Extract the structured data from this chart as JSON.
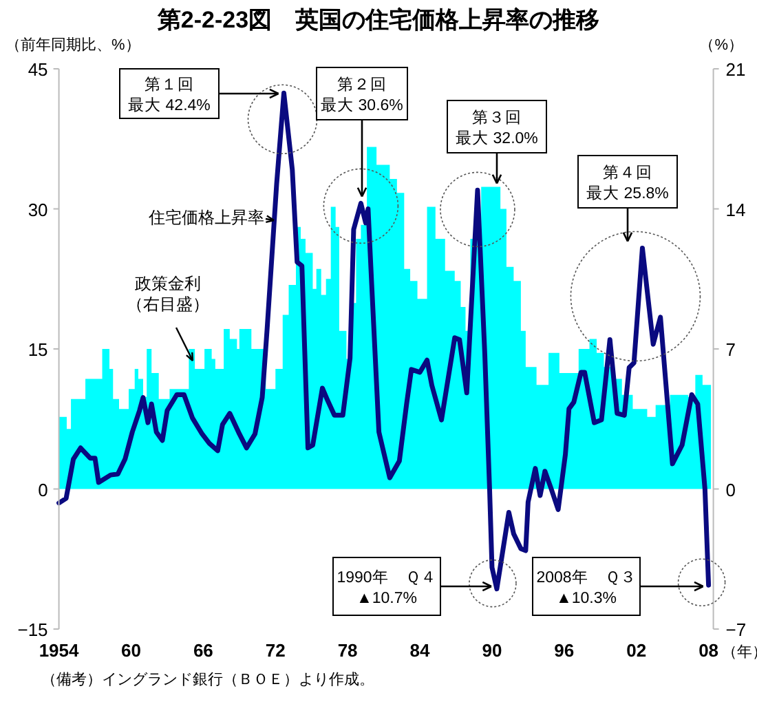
{
  "chart_data": {
    "type": "line",
    "title": "第2-2-23図　英国の住宅価格上昇率の推移",
    "ylabel": "（前年同期比、%）",
    "y2label": "（%）",
    "xlabel": "（年）",
    "xlim": [
      1954,
      2008.4
    ],
    "xticks": [
      1954,
      {
        "value": 1960,
        "label": "60"
      },
      {
        "value": 1966,
        "label": "66"
      },
      {
        "value": 1972,
        "label": "72"
      },
      {
        "value": 1978,
        "label": "78"
      },
      {
        "value": 1984,
        "label": "84"
      },
      {
        "value": 1990,
        "label": "90"
      },
      {
        "value": 1996,
        "label": "96"
      },
      {
        "value": 2002,
        "label": "02"
      },
      {
        "value": 2008,
        "label": "08"
      }
    ],
    "ylim": [
      -15,
      45
    ],
    "yticks": [
      -15,
      0,
      15,
      30,
      45
    ],
    "y2lim": [
      -7,
      21
    ],
    "y2ticks": [
      -7,
      0,
      7,
      14,
      21
    ],
    "grid": false,
    "legend": false,
    "series": [
      {
        "name": "政策金利（右目盛）",
        "type": "area",
        "axis": "y2",
        "color": "#00ffff",
        "x": [
          1954.0,
          1954.65,
          1954.65,
          1955.0,
          1955.0,
          1956.2,
          1956.2,
          1957.6,
          1957.6,
          1958.2,
          1958.2,
          1958.5,
          1958.5,
          1959.0,
          1959.0,
          1959.8,
          1959.8,
          1960.3,
          1960.3,
          1960.6,
          1960.6,
          1961.0,
          1961.0,
          1961.3,
          1961.3,
          1961.7,
          1961.7,
          1962.3,
          1962.3,
          1963.2,
          1963.2,
          1964.8,
          1964.8,
          1965.3,
          1965.3,
          1966.1,
          1966.1,
          1966.7,
          1966.7,
          1967.0,
          1967.0,
          1967.7,
          1967.7,
          1968.2,
          1968.2,
          1968.8,
          1968.8,
          1969.0,
          1969.0,
          1970.0,
          1970.0,
          1971.2,
          1971.2,
          1972.0,
          1972.0,
          1972.6,
          1972.6,
          1973.1,
          1973.1,
          1973.7,
          1973.7,
          1974.1,
          1974.1,
          1974.5,
          1974.5,
          1975.1,
          1975.1,
          1975.4,
          1975.4,
          1975.8,
          1975.8,
          1976.2,
          1976.2,
          1976.6,
          1976.6,
          1977.0,
          1977.0,
          1977.3,
          1977.3,
          1977.9,
          1977.9,
          1978.3,
          1978.3,
          1978.7,
          1978.7,
          1979.1,
          1979.1,
          1979.6,
          1979.6,
          1980.4,
          1980.4,
          1981.5,
          1981.5,
          1982.1,
          1982.1,
          1982.7,
          1982.7,
          1983.2,
          1983.2,
          1983.8,
          1983.8,
          1984.6,
          1984.6,
          1985.3,
          1985.3,
          1986.1,
          1986.1,
          1986.9,
          1986.9,
          1987.4,
          1987.4,
          1987.8,
          1987.8,
          1988.2,
          1988.2,
          1989.1,
          1989.1,
          1990.7,
          1990.7,
          1991.2,
          1991.2,
          1991.8,
          1991.8,
          1992.4,
          1992.4,
          1992.8,
          1992.8,
          1993.7,
          1993.7,
          1994.7,
          1994.7,
          1995.6,
          1995.6,
          1997.2,
          1997.2,
          1998.1,
          1998.1,
          1998.7,
          1998.7,
          1999.3,
          1999.3,
          2000.2,
          2000.2,
          2000.8,
          2000.8,
          2001.7,
          2001.7,
          2002.9,
          2002.9,
          2003.6,
          2003.6,
          2004.8,
          2004.8,
          2006.3,
          2006.3,
          2006.9,
          2006.9,
          2007.5,
          2007.5,
          2008.2
        ],
        "values": [
          3.6,
          3.6,
          3.0,
          3.0,
          4.5,
          4.5,
          5.5,
          5.5,
          7.0,
          7.0,
          6.0,
          6.0,
          4.5,
          4.5,
          4.0,
          4.0,
          5.0,
          5.0,
          6.0,
          6.0,
          5.5,
          5.5,
          4.6,
          4.6,
          7.0,
          7.0,
          5.8,
          5.8,
          4.5,
          4.5,
          5.0,
          5.0,
          7.0,
          7.0,
          6.0,
          6.0,
          7.0,
          7.0,
          6.5,
          6.5,
          6.0,
          6.0,
          8.0,
          8.0,
          7.5,
          7.5,
          7.0,
          7.0,
          8.0,
          8.0,
          7.0,
          7.0,
          5.0,
          5.0,
          6.0,
          6.0,
          8.7,
          8.7,
          10.2,
          10.2,
          13.1,
          13.1,
          12.5,
          12.5,
          11.8,
          11.8,
          10.0,
          10.0,
          11.0,
          11.0,
          9.7,
          9.7,
          10.5,
          10.5,
          14.1,
          14.1,
          13.1,
          13.1,
          7.9,
          7.9,
          6.5,
          6.5,
          9.3,
          9.3,
          12.5,
          12.5,
          13.2,
          13.2,
          17.1,
          17.1,
          16.2,
          16.2,
          15.5,
          15.5,
          14.8,
          14.8,
          11.0,
          11.0,
          10.4,
          10.4,
          9.5,
          9.5,
          14.1,
          14.1,
          12.5,
          12.5,
          10.9,
          10.9,
          10.4,
          10.4,
          9.1,
          9.1,
          7.9,
          7.9,
          12.5,
          12.5,
          15.1,
          15.1,
          14.0,
          14.0,
          11.1,
          11.1,
          10.4,
          10.4,
          7.9,
          7.9,
          6.1,
          6.1,
          5.2,
          5.2,
          6.8,
          6.8,
          5.8,
          5.8,
          7.0,
          7.0,
          7.5,
          7.5,
          6.8,
          6.8,
          6.1,
          6.1,
          5.5,
          5.5,
          4.7,
          4.7,
          4.0,
          4.0,
          3.6,
          3.6,
          4.2,
          4.2,
          4.7,
          4.7,
          4.6,
          4.6,
          5.7,
          5.7,
          5.2,
          5.2
        ]
      },
      {
        "name": "住宅価格上昇率",
        "color": "#0a0a80",
        "x": [
          1954.0,
          1954.6,
          1955.2,
          1955.8,
          1956.6,
          1957.0,
          1957.3,
          1958.3,
          1958.9,
          1959.5,
          1960.1,
          1960.7,
          1961.0,
          1961.4,
          1961.7,
          1962.1,
          1962.6,
          1963.0,
          1963.8,
          1964.4,
          1965.1,
          1965.9,
          1966.5,
          1967.2,
          1967.6,
          1968.2,
          1969.0,
          1969.6,
          1970.3,
          1970.9,
          1971.3,
          1972.1,
          1972.7,
          1973.4,
          1973.8,
          1974.2,
          1974.7,
          1975.1,
          1975.9,
          1976.3,
          1976.9,
          1977.6,
          1978.2,
          1978.5,
          1979.1,
          1979.5,
          1979.7,
          1980.0,
          1980.6,
          1981.5,
          1982.3,
          1982.9,
          1983.3,
          1984.0,
          1984.6,
          1985.0,
          1985.8,
          1986.9,
          1987.3,
          1987.9,
          1988.8,
          1989.4,
          1989.8,
          1990.0,
          1990.4,
          1991.4,
          1991.8,
          1992.4,
          1992.8,
          1993.0,
          1993.6,
          1994.0,
          1994.4,
          1994.9,
          1995.5,
          1996.1,
          1996.4,
          1996.8,
          1997.4,
          1997.7,
          1998.5,
          1999.1,
          1999.8,
          2000.4,
          2001.0,
          2001.4,
          2001.8,
          2002.5,
          2003.4,
          2004.0,
          2005.0,
          2005.8,
          2006.6,
          2007.1,
          2007.7,
          2008.0
        ],
        "values": [
          -1.5,
          -1.0,
          3.2,
          4.4,
          3.3,
          3.3,
          0.7,
          1.5,
          1.6,
          3.2,
          6.1,
          8.4,
          9.8,
          7.1,
          9.1,
          6.1,
          5.2,
          8.4,
          10.1,
          10.1,
          7.6,
          5.9,
          4.9,
          4.1,
          6.9,
          8.1,
          5.9,
          4.4,
          5.9,
          9.8,
          17.0,
          32.7,
          42.4,
          34.2,
          24.3,
          23.9,
          4.4,
          4.7,
          10.8,
          9.6,
          7.9,
          7.9,
          14.0,
          27.8,
          30.6,
          28.5,
          30.0,
          21.9,
          6.1,
          1.2,
          3.0,
          9.1,
          12.8,
          12.5,
          13.8,
          11.1,
          7.4,
          16.2,
          16.0,
          10.3,
          32.0,
          14.5,
          0,
          -8.4,
          -10.7,
          -2.5,
          -4.8,
          -6.4,
          -6.6,
          -1.4,
          2.2,
          -0.7,
          1.9,
          0.1,
          -2.2,
          3.7,
          8.6,
          9.3,
          12.5,
          12.5,
          7.1,
          7.4,
          16.0,
          8.1,
          7.9,
          13.0,
          13.5,
          25.8,
          15.5,
          18.4,
          2.7,
          4.7,
          10.1,
          9.1,
          0,
          -10.3
        ]
      }
    ],
    "annotations": [
      {
        "text": "第１回最大 42.4%",
        "x": 1972.7,
        "y": 42.4
      },
      {
        "text": "第２回最大 30.6%",
        "x": 1979.1,
        "y": 30.6
      },
      {
        "text": "第３回最大 32.0%",
        "x": 1988.8,
        "y": 32.0
      },
      {
        "text": "第４回最大 25.8%",
        "x": 2002.5,
        "y": 25.8
      },
      {
        "text": "1990年　Ｑ４\n▲10.7%",
        "x": 1990.4,
        "y": -10.7
      },
      {
        "text": "2008年　Ｑ３\n▲10.3%",
        "x": 2008.0,
        "y": -10.3
      },
      "（備考）イングランド銀行（ＢＯＥ）より作成。"
    ]
  }
}
